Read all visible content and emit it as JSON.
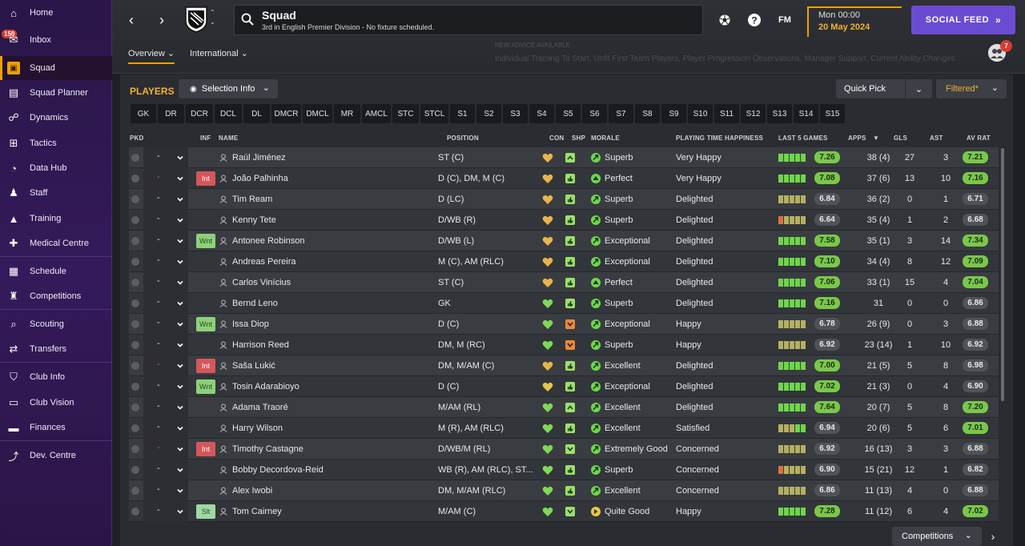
{
  "sidebar": {
    "inbox_badge": "150",
    "items": [
      {
        "label": "Home",
        "icon": "home-icon",
        "glyph": "⌂"
      },
      {
        "label": "Inbox",
        "icon": "inbox-icon",
        "glyph": "✉"
      },
      {
        "label": "Squad",
        "icon": "shirt-icon",
        "glyph": "▣"
      },
      {
        "label": "Squad Planner",
        "icon": "clipboard-icon",
        "glyph": "▤"
      },
      {
        "label": "Dynamics",
        "icon": "people-icon",
        "glyph": "☍"
      },
      {
        "label": "Tactics",
        "icon": "tactics-board-icon",
        "glyph": "⊞"
      },
      {
        "label": "Data Hub",
        "icon": "pie-icon",
        "glyph": "◔"
      },
      {
        "label": "Staff",
        "icon": "staff-icon",
        "glyph": "♟"
      },
      {
        "label": "Training",
        "icon": "cone-icon",
        "glyph": "▲"
      },
      {
        "label": "Medical Centre",
        "icon": "medical-icon",
        "glyph": "✚"
      },
      {
        "label": "Schedule",
        "icon": "calendar-icon",
        "glyph": "▦"
      },
      {
        "label": "Competitions",
        "icon": "trophy-icon",
        "glyph": "♜"
      },
      {
        "label": "Scouting",
        "icon": "magnifier-icon",
        "glyph": "⌕"
      },
      {
        "label": "Transfers",
        "icon": "transfer-icon",
        "glyph": "⇄"
      },
      {
        "label": "Club Info",
        "icon": "shield-icon",
        "glyph": "⛉"
      },
      {
        "label": "Club Vision",
        "icon": "briefcase-icon",
        "glyph": "▭"
      },
      {
        "label": "Finances",
        "icon": "money-icon",
        "glyph": "▬"
      },
      {
        "label": "Dev. Centre",
        "icon": "trend-icon",
        "glyph": "⤴"
      }
    ]
  },
  "header": {
    "title": "Squad",
    "subtitle": "3rd in English Premier Division - No fixture scheduled.",
    "fm_label": "FM",
    "time": "Mon 00:00",
    "date": "20 May 2024",
    "social_feed": "SOCIAL FEED",
    "tabs": [
      {
        "label": "Overview"
      },
      {
        "label": "International"
      }
    ],
    "advice_title": "NEW ADVICE AVAILABLE",
    "advice_text": "Individual Training To Start, Unfit First Team Players, Player Progression Observations, Manager Support, Current Ability Changes",
    "notif_badge": "7"
  },
  "panel": {
    "players_title": "PLAYERS",
    "selection_info": "Selection Info",
    "quick_pick": "Quick Pick",
    "filtered": "Filtered*",
    "positions": [
      "GK",
      "DR",
      "DCR",
      "DCL",
      "DL",
      "DMCR",
      "DMCL",
      "MR",
      "AMCL",
      "STC",
      "STCL",
      "S1",
      "S2",
      "S3",
      "S4",
      "S5",
      "S6",
      "S7",
      "S8",
      "S9",
      "S10",
      "S11",
      "S12",
      "S13",
      "S14",
      "S15"
    ],
    "columns": {
      "pkd": "PKD",
      "inf": "INF",
      "name": "NAME",
      "position": "POSITION",
      "con": "CON",
      "shp": "SHP",
      "morale": "MORALE",
      "pth": "PLAYING TIME HAPPINESS",
      "l5g": "LAST 5 GAMES",
      "apps": "APPS",
      "gls": "GLS",
      "ast": "AST",
      "avrat": "AV RAT"
    },
    "competitions": "Competitions"
  },
  "colors": {
    "green": "#79c84a",
    "accent": "#f0a000",
    "social": "#6a4cd2"
  },
  "players": [
    {
      "name": "Raúl Jiménez",
      "pos": "ST (C)",
      "inf": "",
      "con": "gold",
      "shp": "up",
      "morale": "Superb",
      "mico": "up",
      "pth": "Very Happy",
      "l5g": "7.26",
      "l5gc": "green",
      "bars": [
        "g",
        "g",
        "g",
        "g",
        "g"
      ],
      "apps": "38 (4)",
      "gls": "27",
      "ast": "3",
      "av": "7.21",
      "avc": "green",
      "sel": "-"
    },
    {
      "name": "João Palhinha",
      "pos": "D (C), DM, M (C)",
      "inf": "Int",
      "con": "gold",
      "shp": "thumb",
      "morale": "Perfect",
      "mico": "peak",
      "pth": "Very Happy",
      "l5g": "7.08",
      "l5gc": "green",
      "bars": [
        "g",
        "g",
        "g",
        "g",
        "g"
      ],
      "apps": "37 (6)",
      "gls": "13",
      "ast": "10",
      "av": "7.16",
      "avc": "green",
      "sel": "red"
    },
    {
      "name": "Tim Ream",
      "pos": "D (LC)",
      "inf": "",
      "con": "gold",
      "shp": "thumb",
      "morale": "Superb",
      "mico": "up",
      "pth": "Delighted",
      "l5g": "6.84",
      "l5gc": "grey",
      "bars": [
        "y",
        "y",
        "y",
        "y",
        "y"
      ],
      "apps": "36 (2)",
      "gls": "0",
      "ast": "1",
      "av": "6.71",
      "avc": "grey",
      "sel": "-"
    },
    {
      "name": "Kenny Tete",
      "pos": "D/WB (R)",
      "inf": "",
      "con": "gold",
      "shp": "thumb",
      "morale": "Superb",
      "mico": "up",
      "pth": "Delighted",
      "l5g": "6.64",
      "l5gc": "grey",
      "bars": [
        "r",
        "y",
        "y",
        "y",
        "y"
      ],
      "apps": "35 (4)",
      "gls": "1",
      "ast": "2",
      "av": "6.68",
      "avc": "grey",
      "sel": "-"
    },
    {
      "name": "Antonee Robinson",
      "pos": "D/WB (L)",
      "inf": "Wnt",
      "con": "gold",
      "shp": "thumb",
      "morale": "Exceptional",
      "mico": "up",
      "pth": "Delighted",
      "l5g": "7.58",
      "l5gc": "green",
      "bars": [
        "g",
        "g",
        "g",
        "g",
        "g"
      ],
      "apps": "35 (1)",
      "gls": "3",
      "ast": "14",
      "av": "7.34",
      "avc": "green",
      "sel": "-"
    },
    {
      "name": "Andreas Pereira",
      "pos": "M (C), AM (RLC)",
      "inf": "",
      "con": "gold",
      "shp": "thumb",
      "morale": "Exceptional",
      "mico": "up",
      "pth": "Delighted",
      "l5g": "7.10",
      "l5gc": "green",
      "bars": [
        "g",
        "g",
        "g",
        "g",
        "g"
      ],
      "apps": "34 (4)",
      "gls": "8",
      "ast": "12",
      "av": "7.09",
      "avc": "green",
      "sel": "-"
    },
    {
      "name": "Carlos Vinícius",
      "pos": "ST (C)",
      "inf": "",
      "con": "gold",
      "shp": "thumb",
      "morale": "Perfect",
      "mico": "peak",
      "pth": "Delighted",
      "l5g": "7.06",
      "l5gc": "green",
      "bars": [
        "g",
        "g",
        "g",
        "g",
        "g"
      ],
      "apps": "33 (1)",
      "gls": "15",
      "ast": "4",
      "av": "7.04",
      "avc": "green",
      "sel": "-"
    },
    {
      "name": "Bernd Leno",
      "pos": "GK",
      "inf": "",
      "con": "green",
      "shp": "thumb",
      "morale": "Superb",
      "mico": "up",
      "pth": "Delighted",
      "l5g": "7.16",
      "l5gc": "green",
      "bars": [
        "g",
        "g",
        "g",
        "g",
        "g"
      ],
      "apps": "31",
      "gls": "0",
      "ast": "0",
      "av": "6.86",
      "avc": "grey",
      "sel": "-"
    },
    {
      "name": "Issa Diop",
      "pos": "D (C)",
      "inf": "Wnt",
      "con": "green",
      "shp": "orange",
      "morale": "Exceptional",
      "mico": "up",
      "pth": "Happy",
      "l5g": "6.78",
      "l5gc": "grey",
      "bars": [
        "y",
        "y",
        "y",
        "y",
        "y"
      ],
      "apps": "26 (9)",
      "gls": "0",
      "ast": "3",
      "av": "6.88",
      "avc": "grey",
      "sel": "-"
    },
    {
      "name": "Harrison Reed",
      "pos": "DM, M (RC)",
      "inf": "",
      "con": "green",
      "shp": "orange",
      "morale": "Superb",
      "mico": "up",
      "pth": "Happy",
      "l5g": "6.92",
      "l5gc": "grey",
      "bars": [
        "y",
        "y",
        "y",
        "y",
        "y"
      ],
      "apps": "23 (14)",
      "gls": "1",
      "ast": "10",
      "av": "6.92",
      "avc": "grey",
      "sel": "-"
    },
    {
      "name": "Saša Lukić",
      "pos": "DM, M/AM (C)",
      "inf": "Int",
      "con": "gold",
      "shp": "thumb",
      "morale": "Excellent",
      "mico": "up",
      "pth": "Delighted",
      "l5g": "7.00",
      "l5gc": "green",
      "bars": [
        "g",
        "g",
        "g",
        "g",
        "g"
      ],
      "apps": "21 (5)",
      "gls": "5",
      "ast": "8",
      "av": "6.98",
      "avc": "grey",
      "sel": "red"
    },
    {
      "name": "Tosin Adarabioyo",
      "pos": "D (C)",
      "inf": "Wnt",
      "con": "gold2",
      "shp": "thumb",
      "morale": "Exceptional",
      "mico": "up",
      "pth": "Delighted",
      "l5g": "7.02",
      "l5gc": "green",
      "bars": [
        "g",
        "g",
        "g",
        "g",
        "g"
      ],
      "apps": "21 (3)",
      "gls": "0",
      "ast": "4",
      "av": "6.90",
      "avc": "grey",
      "sel": "-"
    },
    {
      "name": "Adama Traoré",
      "pos": "M/AM (RL)",
      "inf": "",
      "con": "green",
      "shp": "up",
      "morale": "Excellent",
      "mico": "up",
      "pth": "Delighted",
      "l5g": "7.64",
      "l5gc": "green",
      "bars": [
        "g",
        "g",
        "g",
        "g",
        "g"
      ],
      "apps": "20 (7)",
      "gls": "5",
      "ast": "8",
      "av": "7.20",
      "avc": "green",
      "sel": "-"
    },
    {
      "name": "Harry Wilson",
      "pos": "M (R), AM (RLC)",
      "inf": "",
      "con": "green",
      "shp": "thumb",
      "morale": "Excellent",
      "mico": "up",
      "pth": "Satisfied",
      "l5g": "6.94",
      "l5gc": "grey",
      "bars": [
        "y",
        "y",
        "y",
        "g",
        "g"
      ],
      "apps": "20 (6)",
      "gls": "5",
      "ast": "6",
      "av": "7.01",
      "avc": "green",
      "sel": "-"
    },
    {
      "name": "Timothy Castagne",
      "pos": "D/WB/M (RL)",
      "inf": "Int",
      "con": "green",
      "shp": "down",
      "morale": "Extremely Good",
      "mico": "up",
      "pth": "Concerned",
      "l5g": "6.92",
      "l5gc": "grey",
      "bars": [
        "y",
        "y",
        "y",
        "y",
        "y"
      ],
      "apps": "16 (13)",
      "gls": "3",
      "ast": "3",
      "av": "6.88",
      "avc": "grey",
      "sel": "red"
    },
    {
      "name": "Bobby Decordova-Reid",
      "pos": "WB (R), AM (RLC), ST...",
      "inf": "",
      "con": "green",
      "shp": "thumb",
      "morale": "Superb",
      "mico": "up",
      "pth": "Concerned",
      "l5g": "6.90",
      "l5gc": "grey",
      "bars": [
        "r",
        "y",
        "y",
        "y",
        "y"
      ],
      "apps": "15 (21)",
      "gls": "12",
      "ast": "1",
      "av": "6.82",
      "avc": "grey",
      "sel": "-"
    },
    {
      "name": "Alex Iwobi",
      "pos": "DM, M/AM (RLC)",
      "inf": "",
      "con": "green",
      "shp": "thumb",
      "morale": "Excellent",
      "mico": "up",
      "pth": "Concerned",
      "l5g": "6.86",
      "l5gc": "grey",
      "bars": [
        "y",
        "y",
        "y",
        "y",
        "y"
      ],
      "apps": "11 (13)",
      "gls": "4",
      "ast": "0",
      "av": "6.88",
      "avc": "grey",
      "sel": "-"
    },
    {
      "name": "Tom Cairney",
      "pos": "M/AM (C)",
      "inf": "Slt",
      "con": "green",
      "shp": "down",
      "morale": "Quite Good",
      "mico": "right",
      "pth": "Happy",
      "l5g": "7.28",
      "l5gc": "green",
      "bars": [
        "g",
        "g",
        "g",
        "g",
        "g"
      ],
      "apps": "11 (12)",
      "gls": "6",
      "ast": "4",
      "av": "7.02",
      "avc": "green",
      "sel": "-"
    }
  ]
}
